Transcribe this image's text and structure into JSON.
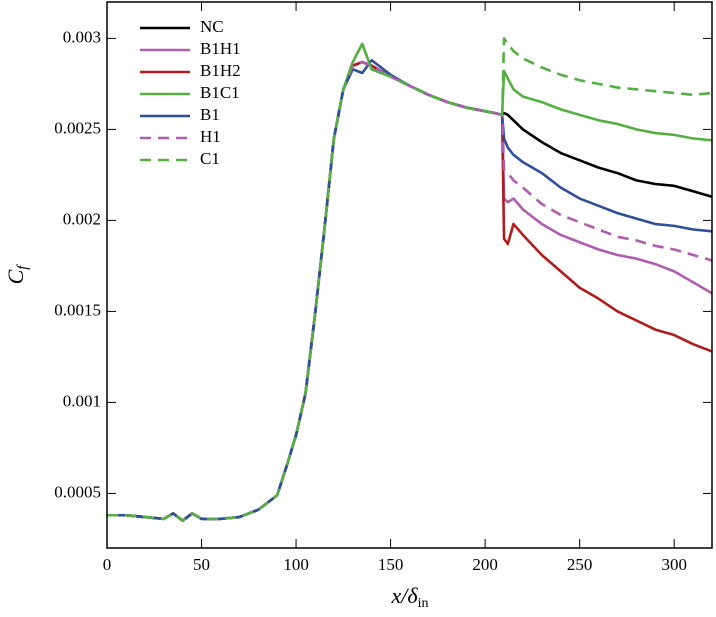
{
  "chart_data": {
    "type": "line",
    "xlabel": [
      "x/δ",
      "in"
    ],
    "ylabel": [
      "C",
      "f"
    ],
    "x": [
      0,
      10,
      20,
      30,
      35,
      40,
      45,
      50,
      60,
      70,
      80,
      90,
      95,
      100,
      105,
      110,
      115,
      120,
      125,
      130,
      135,
      140,
      145,
      150,
      160,
      170,
      180,
      190,
      200,
      205,
      209,
      210,
      212,
      215,
      220,
      230,
      240,
      250,
      260,
      270,
      280,
      290,
      300,
      310,
      320
    ],
    "xlim": [
      0,
      320
    ],
    "xticks": [
      0,
      50,
      100,
      150,
      200,
      250,
      300
    ],
    "ylim": [
      0.0002,
      0.0032
    ],
    "yticks": [
      0.0005,
      0.001,
      0.0015,
      0.002,
      0.0025,
      0.003
    ],
    "series": [
      {
        "name": "NC",
        "color": "#000000",
        "dashed": false,
        "values": [
          0.00038,
          0.00038,
          0.00037,
          0.00036,
          0.00039,
          0.00035,
          0.00039,
          0.00036,
          0.00036,
          0.00037,
          0.00041,
          0.00049,
          0.00065,
          0.00082,
          0.00105,
          0.00148,
          0.00195,
          0.00245,
          0.00272,
          0.00285,
          0.00287,
          0.00285,
          0.00282,
          0.00279,
          0.00274,
          0.00269,
          0.00265,
          0.00262,
          0.0026,
          0.00259,
          0.00258,
          0.00259,
          0.00258,
          0.00255,
          0.0025,
          0.00243,
          0.00237,
          0.00233,
          0.00229,
          0.00226,
          0.00222,
          0.0022,
          0.00219,
          0.00216,
          0.00213
        ]
      },
      {
        "name": "B1H1",
        "color": "#b05cb0",
        "dashed": false,
        "values": [
          0.00038,
          0.00038,
          0.00037,
          0.00036,
          0.00039,
          0.00035,
          0.00039,
          0.00036,
          0.00036,
          0.00037,
          0.00041,
          0.00049,
          0.00065,
          0.00082,
          0.00105,
          0.00148,
          0.00195,
          0.00245,
          0.00272,
          0.00285,
          0.00287,
          0.00285,
          0.00282,
          0.00279,
          0.00274,
          0.00269,
          0.00265,
          0.00262,
          0.0026,
          0.00259,
          0.00258,
          0.00212,
          0.0021,
          0.00212,
          0.00206,
          0.00198,
          0.00192,
          0.00188,
          0.00184,
          0.00181,
          0.00179,
          0.00176,
          0.00172,
          0.00166,
          0.0016
        ]
      },
      {
        "name": "B1H2",
        "color": "#b01c1c",
        "dashed": false,
        "values": [
          0.00038,
          0.00038,
          0.00037,
          0.00036,
          0.00039,
          0.00035,
          0.00039,
          0.00036,
          0.00036,
          0.00037,
          0.00041,
          0.00049,
          0.00065,
          0.00082,
          0.00105,
          0.00148,
          0.00195,
          0.00245,
          0.00272,
          0.00285,
          0.00287,
          0.00285,
          0.00282,
          0.00279,
          0.00274,
          0.00269,
          0.00265,
          0.00262,
          0.0026,
          0.00259,
          0.00258,
          0.0019,
          0.00187,
          0.00198,
          0.00192,
          0.00181,
          0.00172,
          0.00163,
          0.00157,
          0.0015,
          0.00145,
          0.0014,
          0.00137,
          0.00132,
          0.00128
        ]
      },
      {
        "name": "B1C1",
        "color": "#55b043",
        "dashed": false,
        "values": [
          0.00038,
          0.00038,
          0.00037,
          0.00036,
          0.00039,
          0.00035,
          0.00039,
          0.00036,
          0.00036,
          0.00037,
          0.00041,
          0.00049,
          0.00065,
          0.00082,
          0.00105,
          0.00148,
          0.00195,
          0.00245,
          0.00272,
          0.00287,
          0.00297,
          0.00283,
          0.00281,
          0.00279,
          0.00274,
          0.00269,
          0.00265,
          0.00262,
          0.0026,
          0.00259,
          0.00258,
          0.00282,
          0.00278,
          0.00272,
          0.00268,
          0.00265,
          0.00261,
          0.00258,
          0.00255,
          0.00253,
          0.0025,
          0.00248,
          0.00247,
          0.00245,
          0.00244
        ]
      },
      {
        "name": "B1",
        "color": "#2f4f9a",
        "dashed": false,
        "values": [
          0.00038,
          0.00038,
          0.00037,
          0.00036,
          0.00039,
          0.00035,
          0.00039,
          0.00036,
          0.00036,
          0.00037,
          0.00041,
          0.00049,
          0.00065,
          0.00082,
          0.00105,
          0.00148,
          0.00195,
          0.00245,
          0.00272,
          0.00283,
          0.00281,
          0.00288,
          0.00284,
          0.0028,
          0.00274,
          0.00269,
          0.00265,
          0.00262,
          0.0026,
          0.00259,
          0.00258,
          0.00245,
          0.0024,
          0.00236,
          0.00232,
          0.00226,
          0.00218,
          0.00212,
          0.00208,
          0.00204,
          0.00201,
          0.00198,
          0.00197,
          0.00195,
          0.00194
        ]
      },
      {
        "name": "H1",
        "color": "#b05cb0",
        "dashed": true,
        "values": [
          0.00038,
          0.00038,
          0.00037,
          0.00036,
          0.00039,
          0.00035,
          0.00039,
          0.00036,
          0.00036,
          0.00037,
          0.00041,
          0.00049,
          0.00065,
          0.00082,
          0.00105,
          0.00148,
          0.00195,
          0.00245,
          0.00272,
          0.00285,
          0.00287,
          0.00285,
          0.00282,
          0.00279,
          0.00274,
          0.00269,
          0.00265,
          0.00262,
          0.0026,
          0.00259,
          0.00258,
          0.00228,
          0.00226,
          0.00222,
          0.00218,
          0.00209,
          0.00203,
          0.00199,
          0.00195,
          0.00191,
          0.00189,
          0.00186,
          0.00184,
          0.00181,
          0.00178
        ]
      },
      {
        "name": "C1",
        "color": "#55b043",
        "dashed": true,
        "values": [
          0.00038,
          0.00038,
          0.00037,
          0.00036,
          0.00039,
          0.00035,
          0.00039,
          0.00036,
          0.00036,
          0.00037,
          0.00041,
          0.00049,
          0.00065,
          0.00082,
          0.00105,
          0.00148,
          0.00195,
          0.00245,
          0.00272,
          0.00287,
          0.00297,
          0.00283,
          0.00281,
          0.00279,
          0.00274,
          0.00269,
          0.00265,
          0.00262,
          0.0026,
          0.00259,
          0.00258,
          0.003,
          0.00297,
          0.00293,
          0.00289,
          0.00284,
          0.0028,
          0.00277,
          0.00275,
          0.00273,
          0.00272,
          0.00271,
          0.0027,
          0.00269,
          0.0027
        ]
      }
    ]
  }
}
